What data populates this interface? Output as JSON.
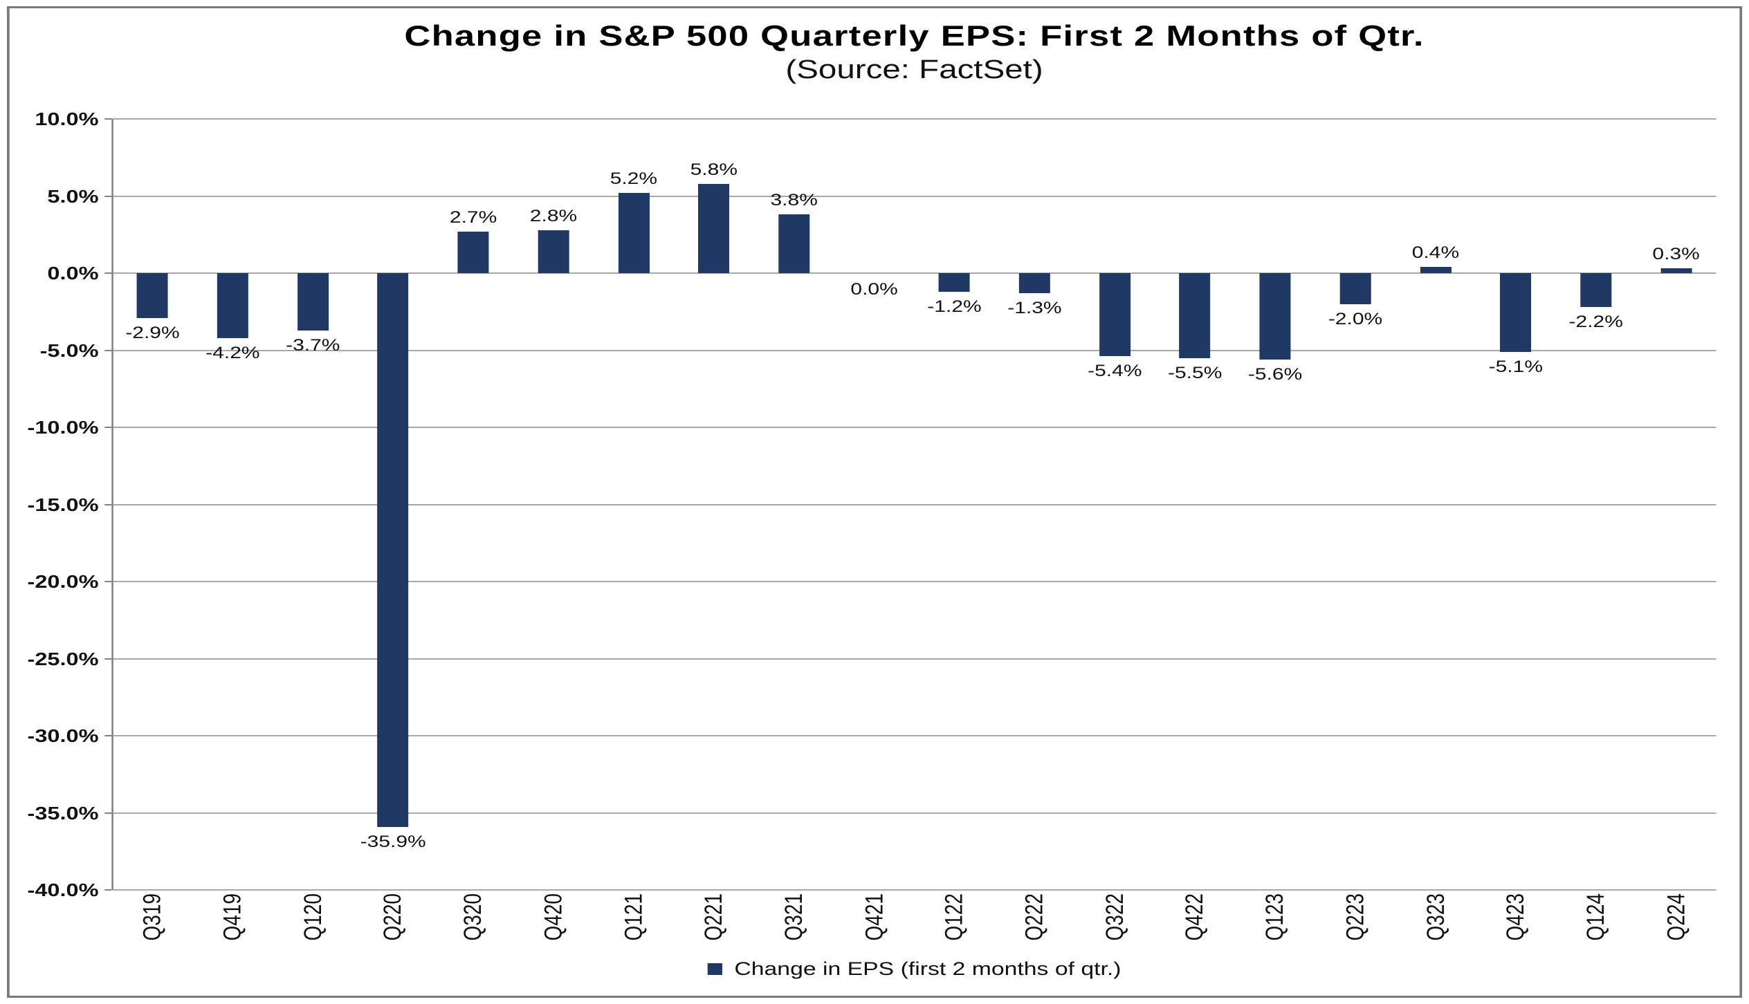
{
  "chart_data": {
    "type": "bar",
    "title": "Change in S&P 500 Quarterly EPS: First 2 Months of Qtr.",
    "subtitle": "(Source: FactSet)",
    "xlabel": "",
    "ylabel": "",
    "ylim": [
      -40,
      10
    ],
    "ytick_step": 5,
    "grid": true,
    "legend_position": "bottom",
    "legend_label": "Change in EPS (first 2 months of qtr.)",
    "bar_color": "#1f3864",
    "gridline_color": "#a8a8a8",
    "axis_color": "#808080",
    "yticks": [
      {
        "value": 10,
        "label": "10.0%"
      },
      {
        "value": 5,
        "label": "5.0%"
      },
      {
        "value": 0,
        "label": "0.0%"
      },
      {
        "value": -5,
        "label": "-5.0%"
      },
      {
        "value": -10,
        "label": "-10.0%"
      },
      {
        "value": -15,
        "label": "-15.0%"
      },
      {
        "value": -20,
        "label": "-20.0%"
      },
      {
        "value": -25,
        "label": "-25.0%"
      },
      {
        "value": -30,
        "label": "-30.0%"
      },
      {
        "value": -35,
        "label": "-35.0%"
      },
      {
        "value": -40,
        "label": "-40.0%"
      }
    ],
    "categories": [
      "Q319",
      "Q419",
      "Q120",
      "Q220",
      "Q320",
      "Q420",
      "Q121",
      "Q221",
      "Q321",
      "Q421",
      "Q122",
      "Q222",
      "Q322",
      "Q422",
      "Q123",
      "Q223",
      "Q323",
      "Q423",
      "Q124",
      "Q224"
    ],
    "values": [
      -2.9,
      -4.2,
      -3.7,
      -35.9,
      2.7,
      2.8,
      5.2,
      5.8,
      3.8,
      0.0,
      -1.2,
      -1.3,
      -5.4,
      -5.5,
      -5.6,
      -2.0,
      0.4,
      -5.1,
      -2.2,
      0.3
    ],
    "value_labels": [
      "-2.9%",
      "-4.2%",
      "-3.7%",
      "-35.9%",
      "2.7%",
      "2.8%",
      "5.2%",
      "5.8%",
      "3.8%",
      "0.0%",
      "-1.2%",
      "-1.3%",
      "-5.4%",
      "-5.5%",
      "-5.6%",
      "-2.0%",
      "0.4%",
      "-5.1%",
      "-2.2%",
      "0.3%"
    ]
  }
}
